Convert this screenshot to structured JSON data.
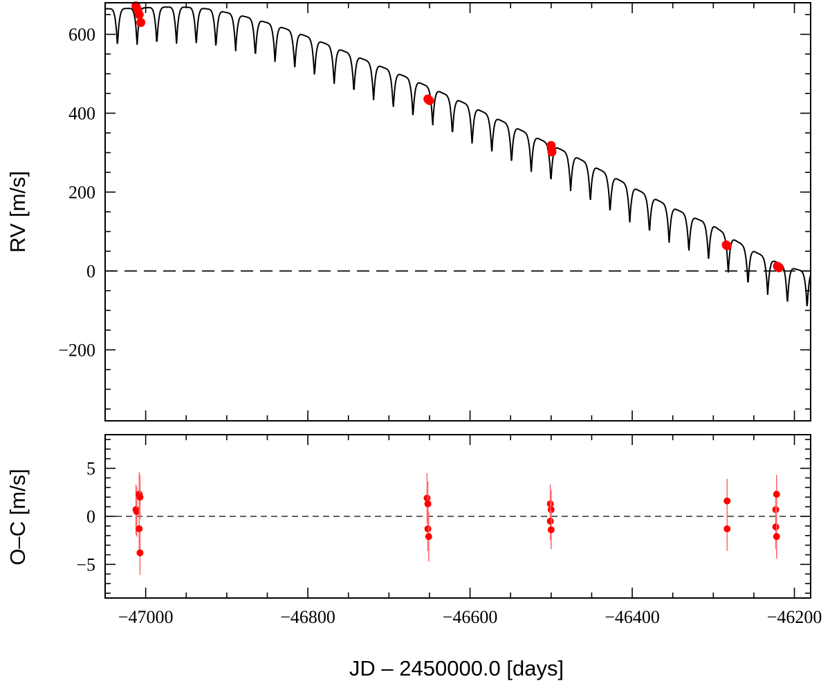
{
  "chart_data": [
    {
      "type": "line",
      "panel": "top",
      "ylabel": "RV [m/s]",
      "xlim": [
        -47050,
        -46180
      ],
      "ylim": [
        -380,
        680
      ],
      "y_ticks": [
        600,
        400,
        200,
        0,
        -200
      ],
      "y_tick_labels": [
        "600",
        "400",
        "200",
        "0",
        "−200"
      ],
      "zero_line": "dashed",
      "model": {
        "name": "",
        "trend": {
          "x": [
            -47050,
            -46900,
            -46700,
            -46500,
            -46300,
            -46190
          ],
          "y": [
            665,
            655,
            510,
            320,
            115,
            0
          ]
        },
        "period_days": 24.3,
        "phase_x": -47047,
        "dip_amplitude": 95,
        "color": "#000000"
      },
      "points": {
        "color": "#ff0000",
        "x": [
          -47012,
          -47010,
          -47008,
          -47006,
          -46652,
          -46650,
          -46500,
          -46499,
          -46284,
          -46283,
          -46221,
          -46219
        ],
        "y": [
          672,
          662,
          650,
          630,
          436,
          432,
          318,
          302,
          66,
          64,
          12,
          8
        ]
      }
    },
    {
      "type": "scatter",
      "panel": "bottom",
      "xlabel": "JD – 2450000.0 [days]",
      "ylabel": "O–C [m/s]",
      "xlim": [
        -47050,
        -46180
      ],
      "ylim": [
        -8.5,
        8.5
      ],
      "x_ticks": [
        -47000,
        -46800,
        -46600,
        -46400,
        -46200
      ],
      "x_tick_labels": [
        "−47000",
        "−46800",
        "−46600",
        "−46400",
        "−46200"
      ],
      "y_ticks": [
        5,
        0,
        -5
      ],
      "y_tick_labels": [
        "5",
        "0",
        "−5"
      ],
      "zero_line": "dashed",
      "points": {
        "color": "#ff0000",
        "x": [
          -47012,
          -47011,
          -47008,
          -47007,
          -47008,
          -47007,
          -46653,
          -46652,
          -46652,
          -46651,
          -46501,
          -46500,
          -46501,
          -46500,
          -46283,
          -46283,
          -46223,
          -46222,
          -46223,
          -46222
        ],
        "y": [
          0.7,
          0.5,
          2.3,
          2.0,
          -1.3,
          -3.8,
          1.9,
          1.3,
          -1.3,
          -2.1,
          1.3,
          0.7,
          -0.5,
          -1.4,
          1.6,
          -1.3,
          0.7,
          2.3,
          -1.1,
          -2.1
        ],
        "err": [
          2.6,
          2.6,
          2.3,
          2.3,
          2.3,
          2.3,
          2.6,
          2.3,
          2.3,
          2.6,
          2.0,
          2.0,
          2.0,
          2.0,
          2.3,
          2.3,
          2.0,
          2.0,
          2.3,
          2.3
        ]
      }
    }
  ]
}
